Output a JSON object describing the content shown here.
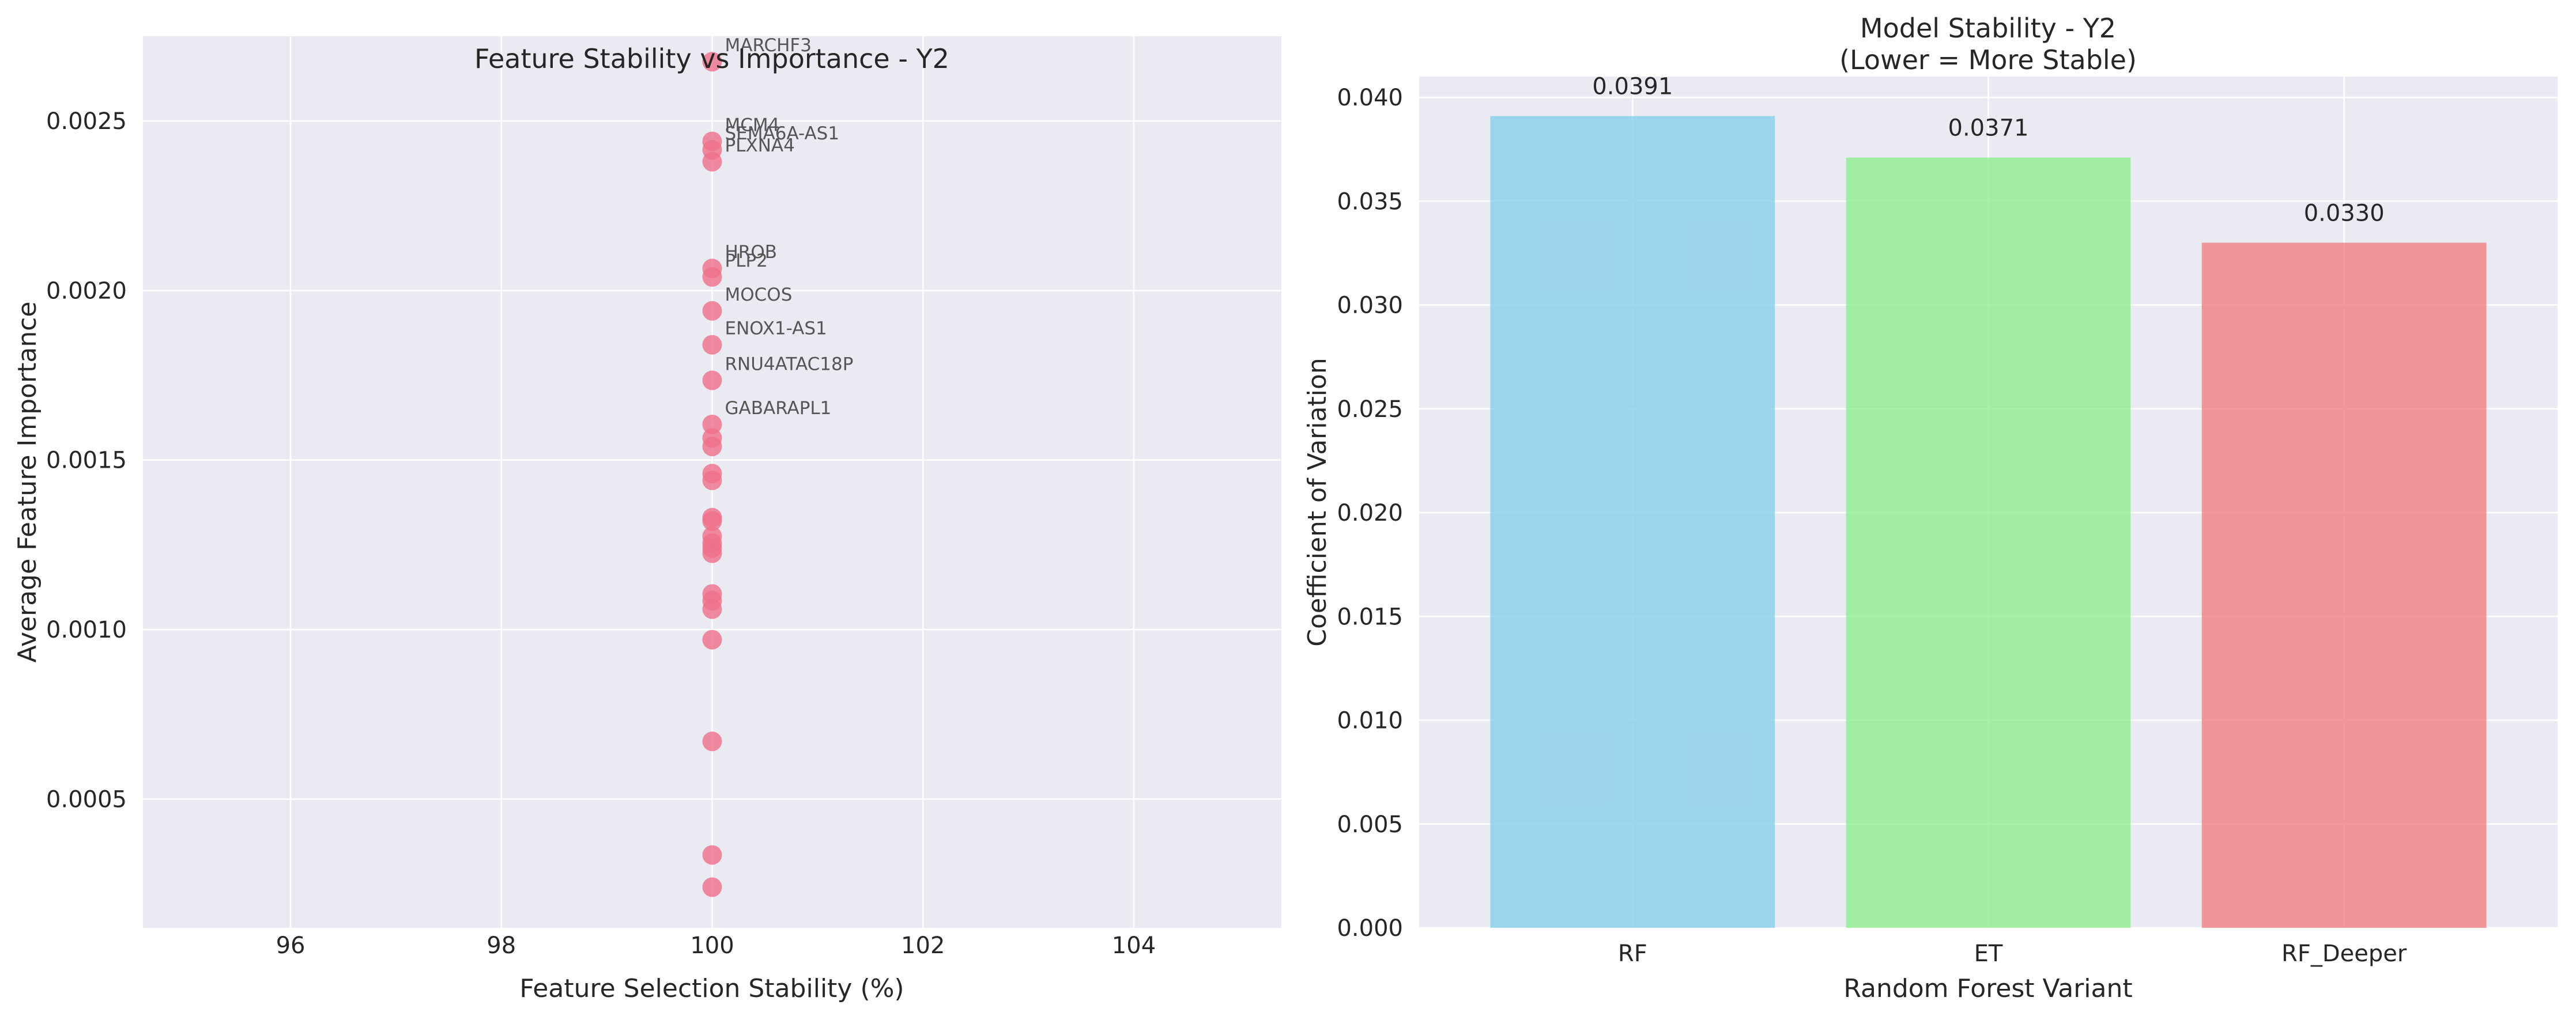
{
  "chart_data": [
    {
      "type": "scatter",
      "title": "Feature Stability vs Importance - Y2",
      "xlabel": "Feature Selection Stability (%)",
      "ylabel": "Average Feature Importance",
      "xlim": [
        94.6,
        105.4
      ],
      "ylim": [
        0.00012,
        0.00275
      ],
      "xticks": [
        "96",
        "98",
        "100",
        "102",
        "104"
      ],
      "yticks": [
        "0.0005",
        "0.0010",
        "0.0015",
        "0.0020",
        "0.0025"
      ],
      "grid": true,
      "marker_color": "#ef6f88",
      "points": [
        {
          "x": 100,
          "y": 0.002675
        },
        {
          "x": 100,
          "y": 0.00244
        },
        {
          "x": 100,
          "y": 0.002415
        },
        {
          "x": 100,
          "y": 0.00238
        },
        {
          "x": 100,
          "y": 0.002065
        },
        {
          "x": 100,
          "y": 0.00204
        },
        {
          "x": 100,
          "y": 0.00194
        },
        {
          "x": 100,
          "y": 0.00184
        },
        {
          "x": 100,
          "y": 0.001735
        },
        {
          "x": 100,
          "y": 0.001605
        },
        {
          "x": 100,
          "y": 0.001565
        },
        {
          "x": 100,
          "y": 0.00154
        },
        {
          "x": 100,
          "y": 0.00146
        },
        {
          "x": 100,
          "y": 0.00144
        },
        {
          "x": 100,
          "y": 0.00133
        },
        {
          "x": 100,
          "y": 0.00132
        },
        {
          "x": 100,
          "y": 0.001275
        },
        {
          "x": 100,
          "y": 0.001255
        },
        {
          "x": 100,
          "y": 0.00124
        },
        {
          "x": 100,
          "y": 0.001225
        },
        {
          "x": 100,
          "y": 0.001105
        },
        {
          "x": 100,
          "y": 0.001085
        },
        {
          "x": 100,
          "y": 0.00106
        },
        {
          "x": 100,
          "y": 0.00097
        },
        {
          "x": 100,
          "y": 0.00067
        },
        {
          "x": 100,
          "y": 0.000335
        },
        {
          "x": 100,
          "y": 0.00024
        }
      ],
      "annotations": [
        {
          "text": "MARCHF3",
          "x": 100,
          "y": 0.002675
        },
        {
          "text": "MCM4",
          "x": 100,
          "y": 0.00244
        },
        {
          "text": "SEMA6A-AS1",
          "x": 100,
          "y": 0.002415
        },
        {
          "text": "PLXNA4",
          "x": 100,
          "y": 0.00238
        },
        {
          "text": "HROB",
          "x": 100,
          "y": 0.002065
        },
        {
          "text": "PLP2",
          "x": 100,
          "y": 0.00204
        },
        {
          "text": "MOCOS",
          "x": 100,
          "y": 0.00194
        },
        {
          "text": "ENOX1-AS1",
          "x": 100,
          "y": 0.00184
        },
        {
          "text": "RNU4ATAC18P",
          "x": 100,
          "y": 0.001735
        },
        {
          "text": "GABARAPL1",
          "x": 100,
          "y": 0.001605
        }
      ]
    },
    {
      "type": "bar",
      "title": "Model Stability - Y2\n(Lower = More Stable)",
      "title_lines": [
        "Model Stability - Y2",
        "(Lower = More Stable)"
      ],
      "xlabel": "Random Forest Variant",
      "ylabel": "Coefficient of Variation",
      "categories": [
        "RF",
        "ET",
        "RF_Deeper"
      ],
      "values": [
        0.0391,
        0.0371,
        0.033
      ],
      "data_labels": [
        "0.0391",
        "0.0371",
        "0.0330"
      ],
      "colors": [
        "#87ceeb",
        "#90ee90",
        "#f08080"
      ],
      "ylim": [
        0,
        0.041
      ],
      "yticks": [
        "0.000",
        "0.005",
        "0.010",
        "0.015",
        "0.020",
        "0.025",
        "0.030",
        "0.035",
        "0.040"
      ],
      "grid": true
    }
  ]
}
